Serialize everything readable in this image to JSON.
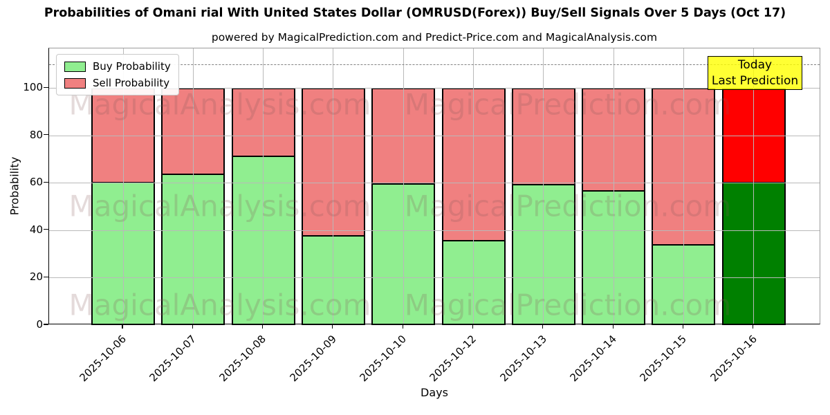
{
  "chart_data": {
    "type": "bar",
    "stacked": true,
    "title": "Probabilities of Omani rial With United States Dollar (OMRUSD(Forex)) Buy/Sell Signals Over 5 Days (Oct 17)",
    "subtitle": "powered by MagicalPrediction.com and Predict-Price.com and MagicalAnalysis.com",
    "xlabel": "Days",
    "ylabel": "Probability",
    "categories": [
      "2025-10-06",
      "2025-10-07",
      "2025-10-08",
      "2025-10-09",
      "2025-10-10",
      "2025-10-12",
      "2025-10-13",
      "2025-10-14",
      "2025-10-15",
      "2025-10-16"
    ],
    "series": [
      {
        "name": "Buy Probability",
        "color": "#90EE90",
        "today_color": "#008000",
        "values": [
          60.5,
          64,
          71.5,
          38,
          59.7,
          36,
          59.4,
          56.8,
          34.1,
          60.5
        ]
      },
      {
        "name": "Sell Probability",
        "color": "#F08080",
        "today_color": "#FF0000",
        "values": [
          39.5,
          36,
          28.5,
          62,
          40.3,
          64,
          40.6,
          43.2,
          65.9,
          39.5
        ]
      }
    ],
    "today_index": 9,
    "ylim": [
      0,
      116.7
    ],
    "yticks": [
      0,
      20,
      40,
      60,
      80,
      100
    ],
    "grid": true,
    "legend_position": "upper-left",
    "dashed_line_y": 110,
    "dashed_line_color": "#808080",
    "annotation": {
      "line1": "Today",
      "line2": "Last Prediction",
      "bg_color": "#FFFF00"
    },
    "watermarks": {
      "left": "MagicalAnalysis.com",
      "right": "MagicalPrediction.com"
    }
  }
}
